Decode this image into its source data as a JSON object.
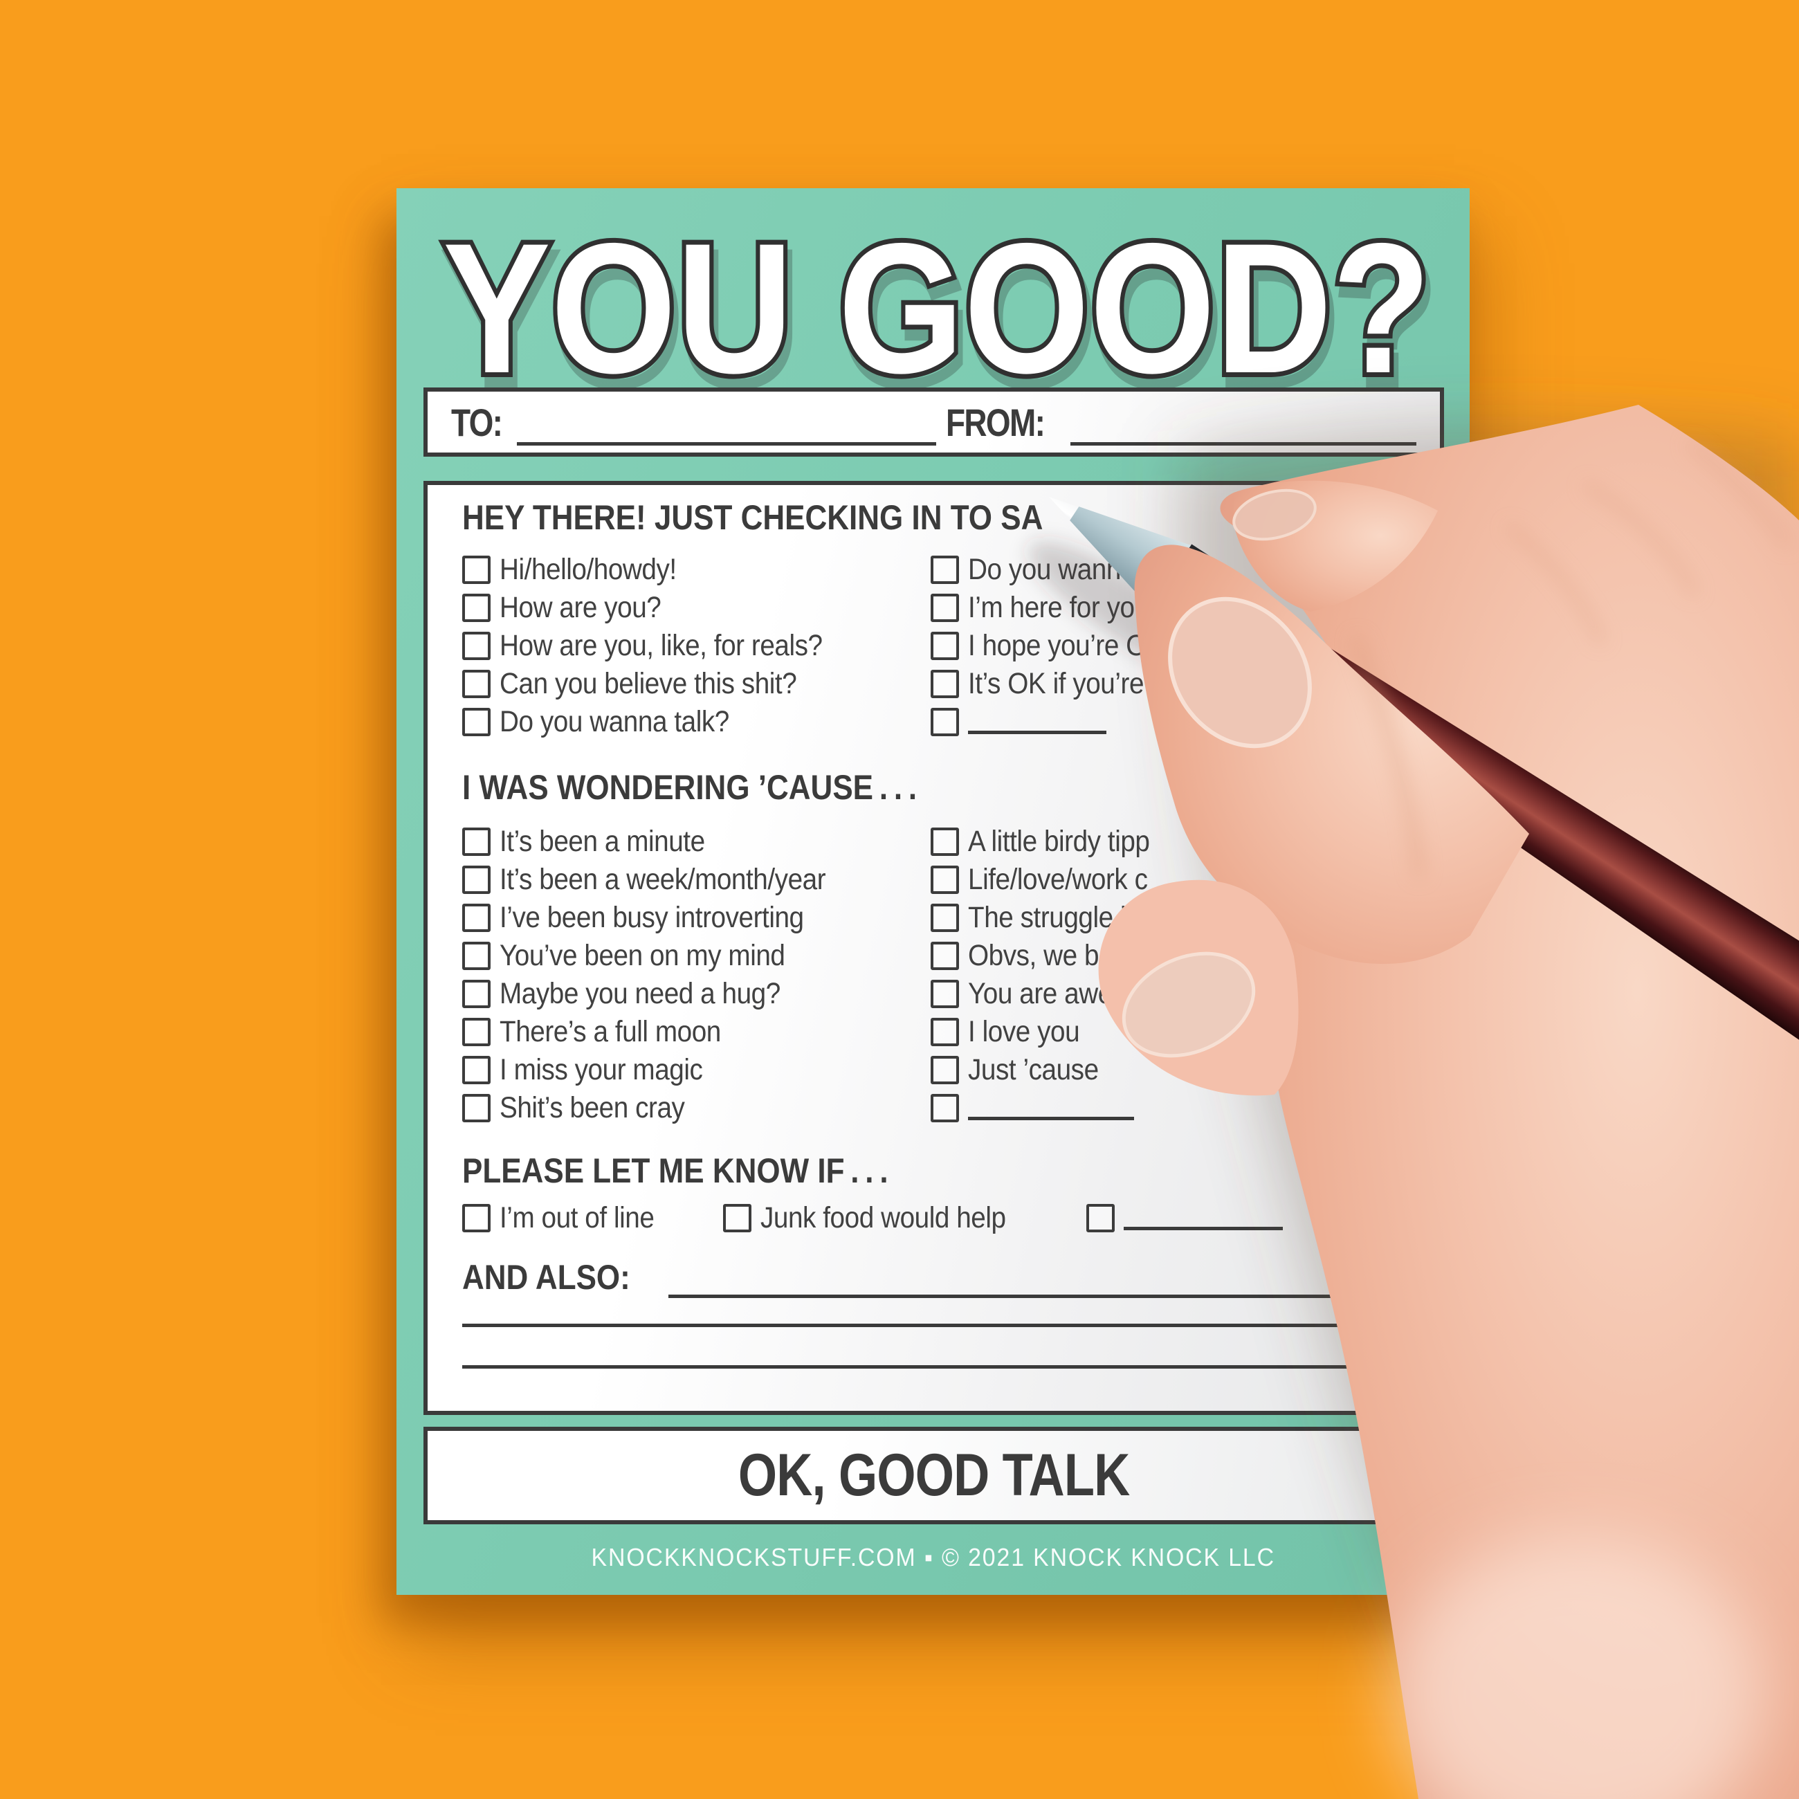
{
  "colors": {
    "background_orange": "#f99d1c",
    "pad_teal": "#7ccbb1",
    "ink": "#3a3a3a",
    "paper": "#ffffff",
    "skin": "#f3c0a9",
    "pen_barrel_maroon": "#8f3c37",
    "pen_cone_blue": "#b3c9d0",
    "pen_chrome": "#f4f5f6"
  },
  "pad": {
    "title": "YOU GOOD?",
    "to_label": "TO:",
    "from_label": "FROM:",
    "sections": [
      {
        "heading": "HEY THERE! JUST CHECKING IN TO SA",
        "columns": [
          [
            "Hi/hello/howdy!",
            "How are you?",
            "How are you, like, for reals?",
            "Can you believe this shit?",
            "Do you wanna talk?"
          ],
          [
            "Do you wann",
            "I’m here for you",
            "I hope you’re O",
            "It’s OK if you’re",
            ""
          ]
        ]
      },
      {
        "heading": "I WAS WONDERING ’CAUSE . . .",
        "columns": [
          [
            "It’s been a minute",
            "It’s been a week/month/year",
            "I’ve been busy introverting",
            "You’ve been on my mind",
            "Maybe you need a hug?",
            "There’s a full moon",
            "I miss your magic",
            "Shit’s been cray"
          ],
          [
            "A little birdy tipp",
            "Life/love/work c",
            "The struggle i",
            "Obvs, we b",
            "You are awes",
            "I love you",
            "Just ’cause",
            ""
          ]
        ]
      },
      {
        "heading": "PLEASE LET ME KNOW IF . . .",
        "columns": [
          [
            "I’m out of line",
            "Junk food would help",
            ""
          ]
        ]
      }
    ],
    "and_also_label": "AND ALSO:",
    "ok_label": "OK, GOOD TALK",
    "footer": "KNOCKKNOCKSTUFF.COM ▪ © 2021 KNOCK KNOCK LLC"
  },
  "photo": {
    "hand": "right hand holding pen over notepad",
    "pen": "maroon pen with chrome ferrule and pale-blue tip"
  }
}
